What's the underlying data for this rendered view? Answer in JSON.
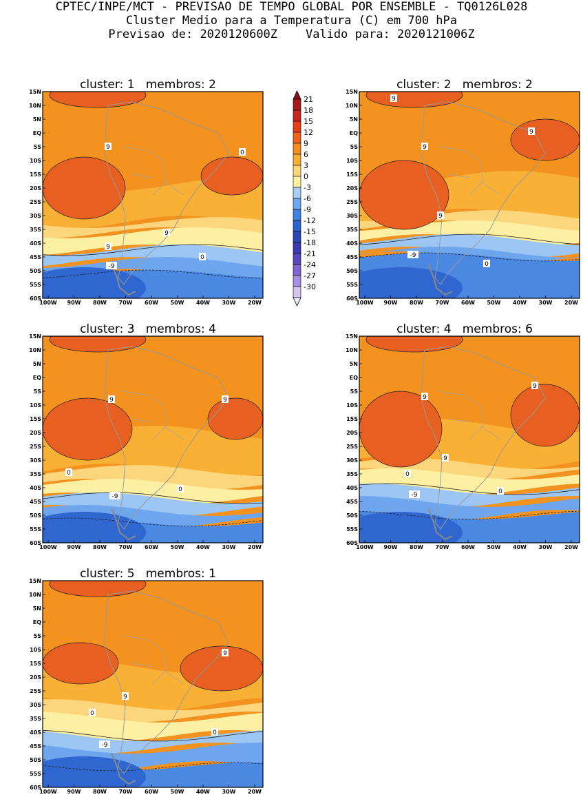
{
  "header": {
    "line1": "CPTEC/INPE/MCT - PREVISAO DE TEMPO GLOBAL POR ENSEMBLE - TQ0126L028",
    "line2": "Cluster Medio para a Temperatura (C) em 700 hPa",
    "line3": "Previsao de: 2020120600Z    Valido para: 2020121006Z"
  },
  "axes": {
    "lat_labels": [
      "15N",
      "10N",
      "5N",
      "EQ",
      "5S",
      "10S",
      "15S",
      "20S",
      "25S",
      "30S",
      "35S",
      "40S",
      "45S",
      "50S",
      "55S",
      "60S"
    ],
    "lon_labels": [
      "100W",
      "90W",
      "80W",
      "70W",
      "60W",
      "50W",
      "40W",
      "30W",
      "20W"
    ]
  },
  "colorbar": {
    "levels": [
      "21",
      "18",
      "15",
      "12",
      "9",
      "6",
      "3",
      "0",
      "-3",
      "-6",
      "-9",
      "-12",
      "-15",
      "-18",
      "-21",
      "-24",
      "-27",
      "-30"
    ],
    "colors": [
      "#a8191b",
      "#c8261e",
      "#e83e1c",
      "#f06220",
      "#f5901f",
      "#f7b036",
      "#fbd57a",
      "#fdf0a0",
      "#a9cdf6",
      "#6fa8ef",
      "#3f82e3",
      "#2b62d0",
      "#2a47b8",
      "#3c3ab0",
      "#5a47c0",
      "#7d66d0",
      "#a98fe3",
      "#d2c5f2"
    ],
    "top_arrow_color": "#8a0f14",
    "bottom_arrow_color": "#f0ecfb"
  },
  "panels": [
    {
      "title": "cluster: 1   membros: 2",
      "contour_labels": [
        "9",
        "9",
        "9",
        "0",
        "0",
        "-9"
      ]
    },
    {
      "title": "cluster: 2   membros: 2",
      "contour_labels": [
        "9",
        "9",
        "9",
        "9",
        "-9",
        "0"
      ]
    },
    {
      "title": "cluster: 3   membros: 4",
      "contour_labels": [
        "9",
        "9",
        "0",
        "0",
        "-9"
      ]
    },
    {
      "title": "cluster: 4   membros: 6",
      "contour_labels": [
        "9",
        "9",
        "9",
        "0",
        "-9",
        "0"
      ]
    },
    {
      "title": "cluster: 5   membros: 1",
      "contour_labels": [
        "9",
        "9",
        "0",
        "0",
        "-9"
      ]
    }
  ]
}
